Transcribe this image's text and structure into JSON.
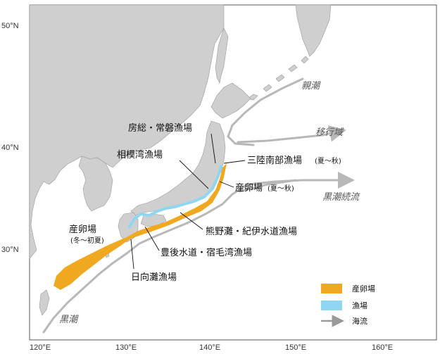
{
  "axes": {
    "lat_labels": [
      "50°N",
      "40°N",
      "30°N"
    ],
    "lon_labels": [
      "120°E",
      "130°E",
      "140°E",
      "150°E",
      "160°E"
    ]
  },
  "labels": {
    "boso": "房総・常磐漁場",
    "sagami": "相模湾漁場",
    "sanriku": "三陸南部漁場",
    "sanriku_season": "(夏〜秋)",
    "spawn_east": "産卵場",
    "spawn_east_season": "(夏〜秋)",
    "spawn_west": "産卵場",
    "spawn_west_season": "(冬〜初夏)",
    "kumano": "熊野灘・紀伊水道漁場",
    "bungo": "豊後水道・宿毛湾漁場",
    "hyuga": "日向灘漁場"
  },
  "currents": {
    "oyashio": "親潮",
    "transition": "移行域",
    "kuroshio_ext": "黒潮続流",
    "kuroshio": "黒潮"
  },
  "legend": {
    "items": [
      {
        "label": "産卵場",
        "color": "#f0a820",
        "icon": "orange-swatch"
      },
      {
        "label": "漁場",
        "color": "#8fd6f2",
        "icon": "blue-swatch"
      },
      {
        "label": "海流",
        "color": "#9a9a9a",
        "icon": "arrow-icon"
      }
    ]
  },
  "colors": {
    "land": "#cfcfcf",
    "spawning": "#f0a820",
    "fishing": "#8fd6f2",
    "current": "#b8b8b8"
  }
}
